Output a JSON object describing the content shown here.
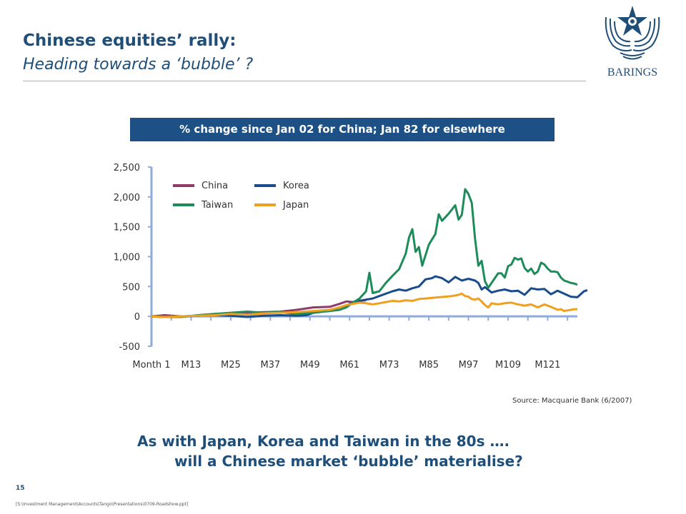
{
  "slide": {
    "title": "Chinese equities’ rally:",
    "subtitle": "Heading towards a ‘bubble’ ?",
    "banner": "% change since Jan 02 for China; Jan 82 for elsewhere",
    "source": "Source: Macquarie Bank (6/2007)",
    "question_line1": "As with Japan, Korea and Taiwan in the 80s ….",
    "question_line2": "will a Chinese market ‘bubble’ materialise?",
    "page_number": "15",
    "file_path": "[S:\\Investment Management\\Accounts\\Tango\\Presentations\\0709-Roadshow.ppt]",
    "logo_text": "BARINGS",
    "brand_color": "#1f4e79"
  },
  "chart_data": {
    "type": "line",
    "ylim": [
      -500,
      2500
    ],
    "yticks": [
      "-500",
      "0",
      "500",
      "1,000",
      "1,500",
      "2,000",
      "2,500"
    ],
    "xlim": [
      1,
      130
    ],
    "xticks": [
      {
        "x": 1,
        "label": "Month 1"
      },
      {
        "x": 13,
        "label": "M13"
      },
      {
        "x": 25,
        "label": "M25"
      },
      {
        "x": 37,
        "label": "M37"
      },
      {
        "x": 49,
        "label": "M49"
      },
      {
        "x": 61,
        "label": "M61"
      },
      {
        "x": 73,
        "label": "M73"
      },
      {
        "x": 85,
        "label": "M85"
      },
      {
        "x": 97,
        "label": "M97"
      },
      {
        "x": 109,
        "label": "M109"
      },
      {
        "x": 121,
        "label": "M121"
      }
    ],
    "series": [
      {
        "name": "China",
        "color": "#8e3a6b",
        "points": [
          [
            1,
            0
          ],
          [
            5,
            20
          ],
          [
            10,
            0
          ],
          [
            15,
            10
          ],
          [
            20,
            30
          ],
          [
            25,
            50
          ],
          [
            30,
            60
          ],
          [
            35,
            70
          ],
          [
            40,
            80
          ],
          [
            45,
            110
          ],
          [
            50,
            150
          ],
          [
            55,
            160
          ],
          [
            58,
            210
          ],
          [
            60,
            250
          ],
          [
            62,
            240
          ],
          [
            64,
            260
          ],
          [
            66,
            270
          ]
        ]
      },
      {
        "name": "Korea",
        "color": "#1a4c8c",
        "points": [
          [
            1,
            0
          ],
          [
            5,
            -10
          ],
          [
            10,
            -5
          ],
          [
            15,
            10
          ],
          [
            20,
            20
          ],
          [
            25,
            10
          ],
          [
            30,
            -10
          ],
          [
            35,
            10
          ],
          [
            40,
            20
          ],
          [
            45,
            10
          ],
          [
            48,
            20
          ],
          [
            50,
            60
          ],
          [
            52,
            80
          ],
          [
            55,
            90
          ],
          [
            58,
            150
          ],
          [
            60,
            180
          ],
          [
            62,
            230
          ],
          [
            64,
            260
          ],
          [
            66,
            280
          ],
          [
            68,
            300
          ],
          [
            70,
            340
          ],
          [
            72,
            380
          ],
          [
            74,
            420
          ],
          [
            76,
            450
          ],
          [
            78,
            430
          ],
          [
            80,
            470
          ],
          [
            82,
            500
          ],
          [
            84,
            620
          ],
          [
            86,
            640
          ],
          [
            87,
            670
          ],
          [
            89,
            640
          ],
          [
            91,
            570
          ],
          [
            93,
            660
          ],
          [
            95,
            600
          ],
          [
            97,
            630
          ],
          [
            99,
            600
          ],
          [
            100,
            560
          ],
          [
            101,
            450
          ],
          [
            102,
            490
          ],
          [
            104,
            400
          ],
          [
            106,
            430
          ],
          [
            108,
            450
          ],
          [
            110,
            420
          ],
          [
            112,
            430
          ],
          [
            114,
            360
          ],
          [
            116,
            470
          ],
          [
            118,
            450
          ],
          [
            120,
            460
          ],
          [
            122,
            370
          ],
          [
            124,
            430
          ],
          [
            126,
            380
          ],
          [
            128,
            330
          ],
          [
            130,
            320
          ],
          [
            132,
            420
          ],
          [
            133,
            440
          ]
        ]
      },
      {
        "name": "Taiwan",
        "color": "#1e8c5a",
        "points": [
          [
            1,
            0
          ],
          [
            5,
            -10
          ],
          [
            10,
            -10
          ],
          [
            15,
            20
          ],
          [
            20,
            40
          ],
          [
            25,
            60
          ],
          [
            30,
            80
          ],
          [
            35,
            60
          ],
          [
            40,
            70
          ],
          [
            45,
            40
          ],
          [
            50,
            60
          ],
          [
            55,
            90
          ],
          [
            58,
            110
          ],
          [
            60,
            150
          ],
          [
            62,
            230
          ],
          [
            64,
            300
          ],
          [
            66,
            420
          ],
          [
            67,
            730
          ],
          [
            68,
            390
          ],
          [
            70,
            420
          ],
          [
            72,
            560
          ],
          [
            74,
            680
          ],
          [
            76,
            790
          ],
          [
            78,
            1050
          ],
          [
            79,
            1320
          ],
          [
            80,
            1460
          ],
          [
            81,
            1080
          ],
          [
            82,
            1160
          ],
          [
            83,
            850
          ],
          [
            85,
            1200
          ],
          [
            87,
            1380
          ],
          [
            88,
            1710
          ],
          [
            89,
            1600
          ],
          [
            91,
            1720
          ],
          [
            93,
            1860
          ],
          [
            94,
            1620
          ],
          [
            95,
            1700
          ],
          [
            96,
            2130
          ],
          [
            97,
            2050
          ],
          [
            98,
            1900
          ],
          [
            99,
            1300
          ],
          [
            100,
            850
          ],
          [
            101,
            930
          ],
          [
            102,
            590
          ],
          [
            103,
            480
          ],
          [
            104,
            560
          ],
          [
            106,
            720
          ],
          [
            107,
            720
          ],
          [
            108,
            650
          ],
          [
            109,
            840
          ],
          [
            110,
            870
          ],
          [
            111,
            980
          ],
          [
            112,
            950
          ],
          [
            113,
            970
          ],
          [
            114,
            810
          ],
          [
            115,
            750
          ],
          [
            116,
            800
          ],
          [
            117,
            710
          ],
          [
            118,
            750
          ],
          [
            119,
            900
          ],
          [
            120,
            870
          ],
          [
            121,
            800
          ],
          [
            122,
            750
          ],
          [
            123,
            750
          ],
          [
            124,
            740
          ],
          [
            125,
            650
          ],
          [
            126,
            600
          ],
          [
            127,
            580
          ],
          [
            128,
            560
          ],
          [
            129,
            550
          ],
          [
            130,
            530
          ]
        ]
      },
      {
        "name": "Japan",
        "color": "#f0a020",
        "points": [
          [
            1,
            0
          ],
          [
            5,
            -10
          ],
          [
            10,
            0
          ],
          [
            15,
            10
          ],
          [
            20,
            20
          ],
          [
            25,
            40
          ],
          [
            30,
            30
          ],
          [
            35,
            50
          ],
          [
            40,
            60
          ],
          [
            45,
            70
          ],
          [
            50,
            90
          ],
          [
            55,
            110
          ],
          [
            58,
            150
          ],
          [
            60,
            190
          ],
          [
            62,
            210
          ],
          [
            64,
            230
          ],
          [
            66,
            220
          ],
          [
            68,
            200
          ],
          [
            70,
            220
          ],
          [
            72,
            240
          ],
          [
            74,
            260
          ],
          [
            76,
            250
          ],
          [
            78,
            270
          ],
          [
            80,
            260
          ],
          [
            82,
            290
          ],
          [
            84,
            300
          ],
          [
            86,
            310
          ],
          [
            88,
            320
          ],
          [
            90,
            330
          ],
          [
            92,
            340
          ],
          [
            94,
            360
          ],
          [
            95,
            380
          ],
          [
            96,
            340
          ],
          [
            97,
            330
          ],
          [
            98,
            290
          ],
          [
            99,
            280
          ],
          [
            100,
            300
          ],
          [
            101,
            250
          ],
          [
            102,
            190
          ],
          [
            103,
            150
          ],
          [
            104,
            220
          ],
          [
            106,
            200
          ],
          [
            108,
            220
          ],
          [
            110,
            230
          ],
          [
            112,
            200
          ],
          [
            114,
            180
          ],
          [
            116,
            200
          ],
          [
            118,
            150
          ],
          [
            120,
            200
          ],
          [
            122,
            160
          ],
          [
            124,
            110
          ],
          [
            125,
            120
          ],
          [
            126,
            90
          ],
          [
            127,
            100
          ],
          [
            128,
            110
          ],
          [
            129,
            120
          ],
          [
            130,
            120
          ]
        ]
      }
    ]
  }
}
